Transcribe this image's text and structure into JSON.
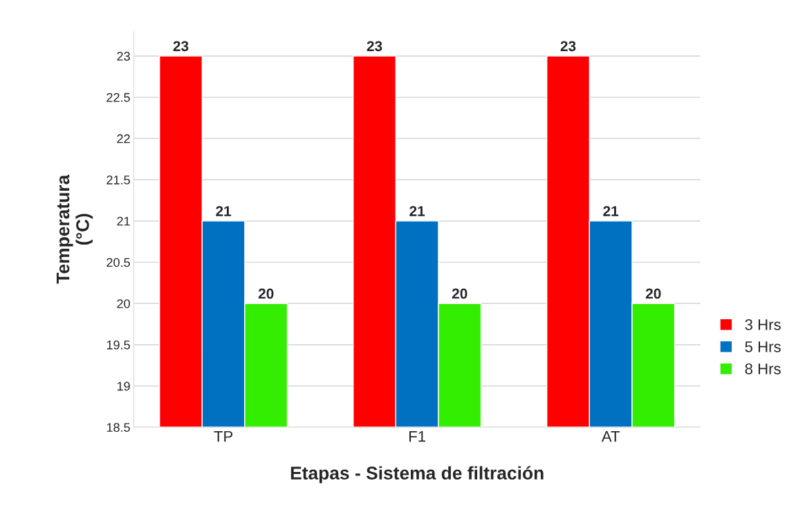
{
  "chart_data": {
    "type": "bar",
    "xlabel": "Etapas - Sistema de filtración",
    "ylabel": "Temperatura\n(°C)",
    "categories": [
      "TP",
      "F1",
      "AT"
    ],
    "series": [
      {
        "name": "3 Hrs",
        "color": "#ff0000",
        "values": [
          23,
          23,
          23
        ]
      },
      {
        "name": "5 Hrs",
        "color": "#0070c0",
        "values": [
          21,
          21,
          21
        ]
      },
      {
        "name": "8 Hrs",
        "color": "#33ee00",
        "values": [
          20,
          20,
          20
        ]
      }
    ],
    "ylim": [
      18.5,
      23.3
    ],
    "yticks": [
      18.5,
      19,
      19.5,
      20,
      20.5,
      21,
      21.5,
      22,
      22.5,
      23
    ],
    "grid": "y",
    "legend": "right",
    "data_labels": true
  }
}
